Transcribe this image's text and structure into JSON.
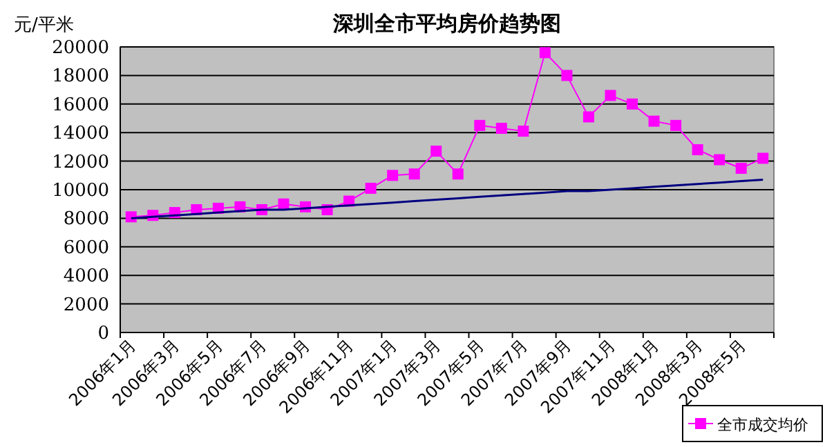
{
  "chart_data": {
    "type": "line",
    "title": "深圳全市平均房价趋势图",
    "ylabel": "元/平米",
    "categories": [
      "2006年1月",
      null,
      "2006年3月",
      null,
      "2006年5月",
      null,
      "2006年7月",
      null,
      "2006年9月",
      null,
      "2006年11月",
      null,
      "2007年1月",
      null,
      "2007年3月",
      null,
      "2007年5月",
      null,
      "2007年7月",
      null,
      "2007年9月",
      null,
      "2007年11月",
      null,
      "2008年1月",
      null,
      "2008年3月",
      null,
      "2008年5月",
      null
    ],
    "series": [
      {
        "name": "全市成交均价",
        "color": "#ff00ff",
        "marker": "square",
        "values": [
          8100,
          8200,
          8400,
          8600,
          8700,
          8800,
          8600,
          9000,
          8800,
          8600,
          9200,
          10100,
          11000,
          11100,
          12700,
          11100,
          14500,
          14300,
          14100,
          19600,
          18000,
          15100,
          16600,
          16000,
          14800,
          14500,
          12800,
          12100,
          11500,
          12200
        ]
      },
      {
        "color": "#000080",
        "marker": "none",
        "values": [
          8000,
          8100,
          8200,
          8300,
          8400,
          8500,
          8600,
          8600,
          8700,
          8800,
          8900,
          9000,
          9100,
          9200,
          9300,
          9400,
          9500,
          9600,
          9700,
          9800,
          9900,
          9900,
          10000,
          10100,
          10200,
          10300,
          10400,
          10500,
          10600,
          10700
        ]
      }
    ],
    "ylim": [
      0,
      20000
    ],
    "yticks": [
      0,
      2000,
      4000,
      6000,
      8000,
      10000,
      12000,
      14000,
      16000,
      18000,
      20000
    ],
    "grid": "y",
    "legend": "bottom right"
  }
}
